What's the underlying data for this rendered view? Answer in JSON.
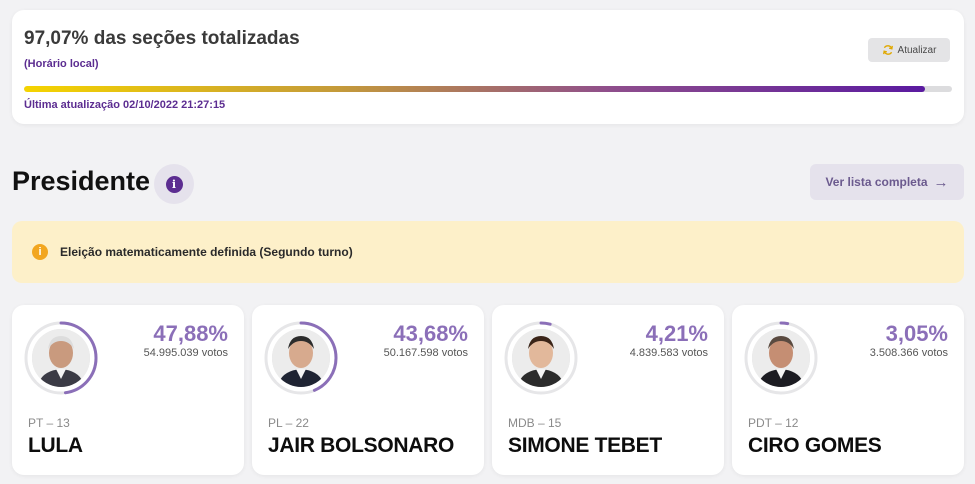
{
  "status": {
    "title": "97,07% das seções totalizadas",
    "subtitle": "(Horário local)",
    "update_button": "Atualizar",
    "progress_percent": 97.07,
    "last_update": "Última atualização 02/10/2022 21:27:15"
  },
  "section": {
    "title": "Presidente",
    "info_glyph": "i",
    "list_button": "Ver lista completa",
    "list_arrow": "→"
  },
  "alert": {
    "glyph": "i",
    "text": "Eleição matematicamente definida (Segundo turno)"
  },
  "candidates": [
    {
      "percent": "47,88%",
      "percent_value": 47.88,
      "votes": "54.995.039 votos",
      "party": "PT – 13",
      "name": "LULA",
      "skin": "#c99a7e",
      "hair": "#dcdcdc",
      "suit": "#3b3b45"
    },
    {
      "percent": "43,68%",
      "percent_value": 43.68,
      "votes": "50.167.598 votos",
      "party": "PL – 22",
      "name": "JAIR BOLSONARO",
      "skin": "#d7aa8e",
      "hair": "#2c2c2c",
      "suit": "#1f2433"
    },
    {
      "percent": "4,21%",
      "percent_value": 4.21,
      "votes": "4.839.583 votos",
      "party": "MDB – 15",
      "name": "SIMONE TEBET",
      "skin": "#e2b89b",
      "hair": "#3a2418",
      "suit": "#2b2b2b"
    },
    {
      "percent": "3,05%",
      "percent_value": 3.05,
      "votes": "3.508.366 votos",
      "party": "PDT – 12",
      "name": "CIRO GOMES",
      "skin": "#c58e73",
      "hair": "#5a4a40",
      "suit": "#1c1c22"
    }
  ],
  "colors": {
    "accent": "#5c2d91",
    "percent": "#8b6fb8",
    "ring_track": "#e6e6e8",
    "alert_bg": "#fdf0c9",
    "alert_icon": "#f2a61f"
  }
}
